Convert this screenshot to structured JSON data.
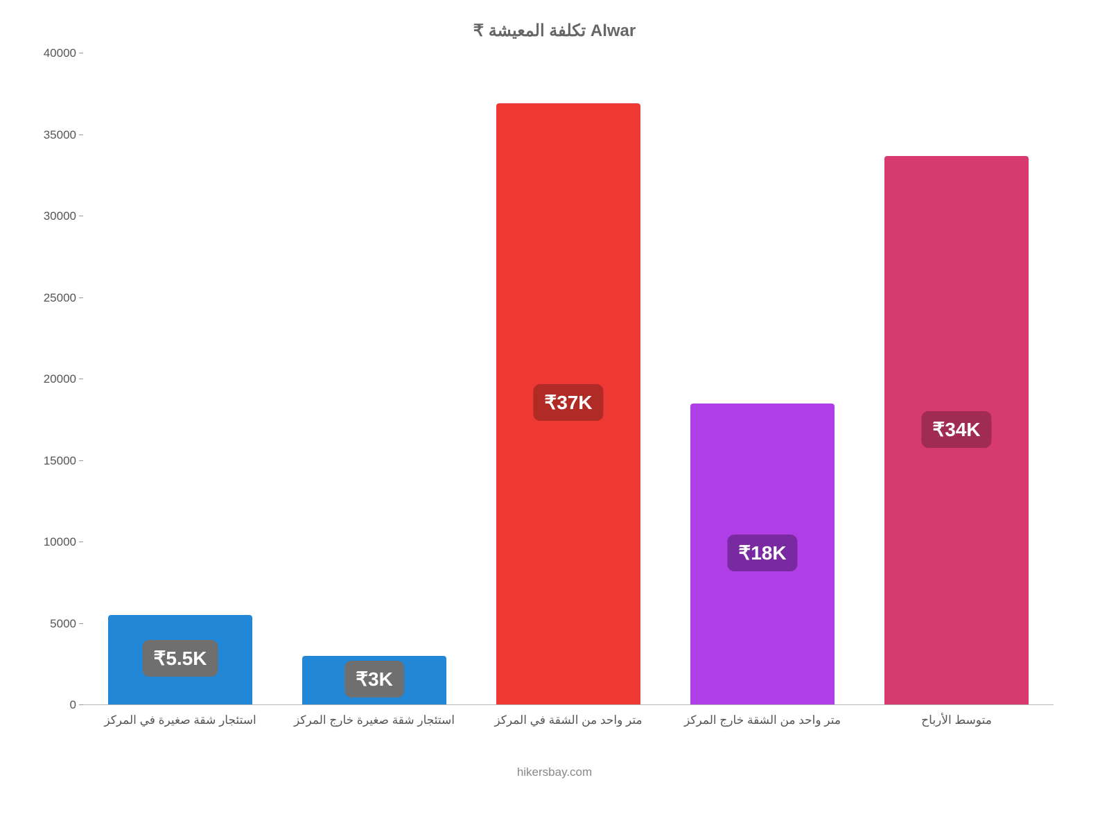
{
  "chart": {
    "type": "bar",
    "title": "₹ تكلفة المعيشة Alwar",
    "title_fontsize": 24,
    "title_fontweight": 700,
    "title_color": "#666666",
    "attribution": "hikersbay.com",
    "attribution_fontsize": 17,
    "attribution_color": "#888888",
    "background_color": "#ffffff",
    "axis_color": "#b8b8b8",
    "tick_label_color": "#555555",
    "tick_label_fontsize": 17,
    "xlabel_fontsize": 17,
    "ylim_min": 0,
    "ylim_max": 40000,
    "ytick_step": 5000,
    "yticks": [
      {
        "v": 0,
        "label": "0"
      },
      {
        "v": 5000,
        "label": "5000"
      },
      {
        "v": 10000,
        "label": "10000"
      },
      {
        "v": 15000,
        "label": "15000"
      },
      {
        "v": 20000,
        "label": "20000"
      },
      {
        "v": 25000,
        "label": "25000"
      },
      {
        "v": 30000,
        "label": "30000"
      },
      {
        "v": 35000,
        "label": "35000"
      },
      {
        "v": 40000,
        "label": "40000"
      }
    ],
    "bar_width_ratio": 0.74,
    "value_badge_fontsize": 28,
    "value_badge_radius": 10,
    "categories": [
      {
        "label": "استئجار شقة صغيرة في المركز",
        "value": 5500,
        "value_label": "₹5.5K",
        "bar_color": "#2287d6",
        "badge_color": "#6f6f6f"
      },
      {
        "label": "استئجار شقة صغيرة خارج المركز",
        "value": 3000,
        "value_label": "₹3K",
        "bar_color": "#2287d6",
        "badge_color": "#6f6f6f"
      },
      {
        "label": "متر واحد من الشقة في المركز",
        "value": 36900,
        "value_label": "₹37K",
        "bar_color": "#ed3833",
        "badge_color": "#b02a26"
      },
      {
        "label": "متر واحد من الشقة خارج المركز",
        "value": 18450,
        "value_label": "₹18K",
        "bar_color": "#b03ee6",
        "badge_color": "#7a2aa0"
      },
      {
        "label": "متوسط الأرباح",
        "value": 33650,
        "value_label": "₹34K",
        "bar_color": "#d63a6e",
        "badge_color": "#a02c53"
      }
    ]
  }
}
